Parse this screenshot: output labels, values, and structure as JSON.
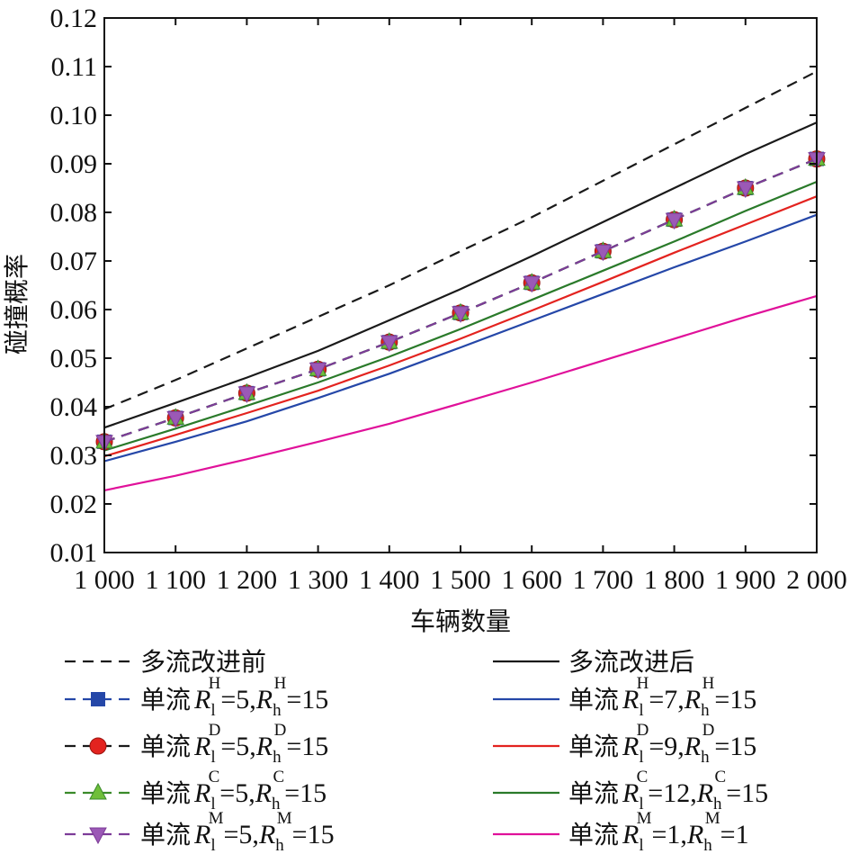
{
  "chart_data": {
    "type": "line",
    "xlabel": "车辆数量",
    "ylabel": "碰撞概率",
    "xlim": [
      1000,
      2000
    ],
    "ylim": [
      0.01,
      0.12
    ],
    "x_ticks": [
      "1 000",
      "1 100",
      "1 200",
      "1 300",
      "1 400",
      "1 500",
      "1 600",
      "1 700",
      "1 800",
      "1 900",
      "2 000"
    ],
    "y_ticks": [
      "0.01",
      "0.02",
      "0.03",
      "0.04",
      "0.05",
      "0.06",
      "0.07",
      "0.08",
      "0.09",
      "0.10",
      "0.11",
      "0.12"
    ],
    "grid": false,
    "legend_position": "bottom",
    "x": [
      1000,
      1100,
      1200,
      1300,
      1400,
      1500,
      1600,
      1700,
      1800,
      1900,
      2000
    ],
    "series": [
      {
        "id": "multi-before",
        "name": "多流改进前",
        "color": "#1a1a1a",
        "dash": "dashed",
        "marker": "none",
        "values": [
          0.0395,
          0.0455,
          0.052,
          0.0585,
          0.065,
          0.072,
          0.079,
          0.0865,
          0.094,
          0.1015,
          0.109
        ]
      },
      {
        "id": "multi-after",
        "name": "多流改进后",
        "color": "#1a1a1a",
        "dash": "solid",
        "marker": "none",
        "values": [
          0.0357,
          0.0408,
          0.046,
          0.0515,
          0.0578,
          0.0642,
          0.071,
          0.078,
          0.085,
          0.092,
          0.0985
        ]
      },
      {
        "id": "single-H-5",
        "name_prefix": "单流",
        "letter": "H",
        "rl": "5",
        "rh": "15",
        "color": "#2547a8",
        "dash": "dashed",
        "marker": "square",
        "values": [
          0.0328,
          0.0377,
          0.0428,
          0.0477,
          0.0533,
          0.0593,
          0.0655,
          0.072,
          0.0785,
          0.085,
          0.091
        ]
      },
      {
        "id": "single-D-5",
        "name_prefix": "单流",
        "letter": "D",
        "rl": "5",
        "rh": "15",
        "color": "#1a1a1a",
        "dash": "dashed",
        "marker": "circle",
        "values": [
          0.0328,
          0.0377,
          0.0428,
          0.0477,
          0.0533,
          0.0593,
          0.0655,
          0.072,
          0.0785,
          0.085,
          0.091
        ]
      },
      {
        "id": "single-C-5",
        "name_prefix": "单流",
        "letter": "C",
        "rl": "5",
        "rh": "15",
        "color": "#3a8a2a",
        "dash": "dashed",
        "marker": "triangle-up",
        "values": [
          0.0328,
          0.0377,
          0.0428,
          0.0477,
          0.0533,
          0.0593,
          0.0655,
          0.072,
          0.0785,
          0.085,
          0.091
        ]
      },
      {
        "id": "single-M-5",
        "name_prefix": "单流",
        "letter": "M",
        "rl": "5",
        "rh": "15",
        "color": "#7d3c98",
        "dash": "dashed",
        "marker": "triangle-down",
        "marker_fill": "#9b59b6",
        "values": [
          0.0328,
          0.0377,
          0.0428,
          0.0477,
          0.0533,
          0.0593,
          0.0655,
          0.072,
          0.0785,
          0.085,
          0.091
        ]
      },
      {
        "id": "single-H-7",
        "name_prefix": "单流",
        "letter": "H",
        "rl": "7",
        "rh": "15",
        "color": "#2547a8",
        "dash": "solid",
        "marker": "none",
        "values": [
          0.0288,
          0.0328,
          0.037,
          0.0418,
          0.0468,
          0.0522,
          0.0577,
          0.0632,
          0.0687,
          0.074,
          0.0795
        ]
      },
      {
        "id": "single-D-9",
        "name_prefix": "单流",
        "letter": "D",
        "rl": "9",
        "rh": "15",
        "color": "#e3231f",
        "dash": "solid",
        "marker": "none",
        "values": [
          0.0298,
          0.0342,
          0.0387,
          0.0433,
          0.0485,
          0.054,
          0.0598,
          0.0657,
          0.0717,
          0.0775,
          0.0833
        ]
      },
      {
        "id": "single-C-12",
        "name_prefix": "单流",
        "letter": "C",
        "rl": "12",
        "rh": "15",
        "color": "#2a7a2a",
        "dash": "solid",
        "marker": "none",
        "values": [
          0.031,
          0.0355,
          0.0402,
          0.045,
          0.0503,
          0.056,
          0.062,
          0.068,
          0.074,
          0.0803,
          0.0863
        ]
      },
      {
        "id": "single-M-1",
        "name_prefix": "单流",
        "letter": "M",
        "rl": "1",
        "rh": "1",
        "color": "#e0119a",
        "dash": "solid",
        "marker": "none",
        "values": [
          0.0228,
          0.0258,
          0.0292,
          0.0328,
          0.0365,
          0.0407,
          0.045,
          0.0495,
          0.054,
          0.0585,
          0.0628
        ]
      }
    ],
    "legend_order_left": [
      "multi-before",
      "single-H-5",
      "single-D-5",
      "single-C-5",
      "single-M-5"
    ],
    "legend_order_right": [
      "multi-after",
      "single-H-7",
      "single-D-9",
      "single-C-12",
      "single-M-1"
    ]
  }
}
